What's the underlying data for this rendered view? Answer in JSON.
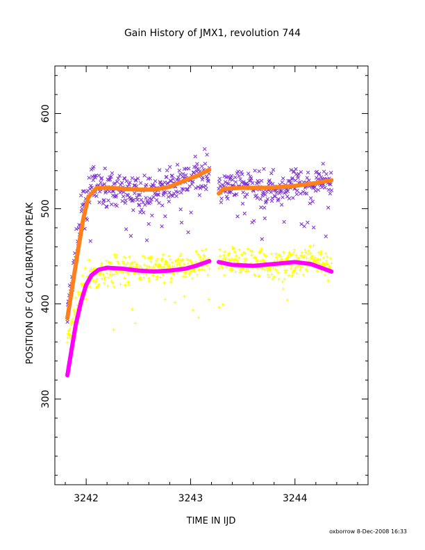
{
  "chart_data": {
    "type": "scatter",
    "title": "Gain History of JMX1, revolution 744",
    "xlabel": "TIME IN IJD",
    "ylabel": "POSITION OF Cd CALIBRATION PEAK",
    "xlim": [
      3241.7,
      3244.7
    ],
    "ylim": [
      210,
      650
    ],
    "x_ticks": [
      3242,
      3243,
      3244
    ],
    "x_tick_labels": [
      "3242",
      "3243",
      "3244"
    ],
    "y_ticks": [
      300,
      400,
      500,
      600
    ],
    "y_tick_labels": [
      "300",
      "400",
      "500",
      "600"
    ],
    "grid": false,
    "legend": "none",
    "segments": [
      [
        3241.82,
        3243.18
      ],
      [
        3243.27,
        3244.35
      ]
    ],
    "series": [
      {
        "marker": "x",
        "color": "#7b2fd0",
        "kind": "scatter",
        "anchors_x": [
          3241.82,
          3241.9,
          3241.97,
          3242.05,
          3242.2,
          3242.4,
          3242.6,
          3242.8,
          3243.0,
          3243.18,
          3243.27,
          3243.5,
          3243.8,
          3244.1,
          3244.35
        ],
        "anchors_y": [
          390,
          450,
          505,
          525,
          520,
          518,
          515,
          525,
          530,
          540,
          520,
          525,
          520,
          525,
          530
        ],
        "noise": 14
      },
      {
        "marker": "line",
        "color": "#ff7f1a",
        "kind": "fit",
        "x": [
          3241.82,
          3241.87,
          3241.92,
          3241.97,
          3242.02,
          3242.1,
          3242.2,
          3242.35,
          3242.5,
          3242.65,
          3242.8,
          3242.95,
          3243.05,
          3243.18,
          3243.27,
          3243.32,
          3243.5,
          3243.75,
          3244.0,
          3244.2,
          3244.35
        ],
        "y": [
          385,
          420,
          455,
          488,
          512,
          522,
          522,
          521,
          520,
          520,
          523,
          530,
          534,
          541,
          516,
          521,
          522,
          522,
          524,
          527,
          530
        ]
      },
      {
        "marker": "+",
        "color": "#ffff00",
        "kind": "scatter",
        "anchors_x": [
          3241.82,
          3241.87,
          3241.92,
          3241.97,
          3242.05,
          3242.2,
          3242.5,
          3242.8,
          3243.0,
          3243.18,
          3243.27,
          3243.5,
          3243.8,
          3244.1,
          3244.35
        ],
        "anchors_y": [
          360,
          385,
          400,
          420,
          430,
          435,
          435,
          440,
          440,
          445,
          445,
          445,
          440,
          445,
          440
        ],
        "noise": 12
      },
      {
        "marker": "line",
        "color": "#ff00ff",
        "kind": "fit",
        "x": [
          3241.82,
          3241.86,
          3241.9,
          3241.95,
          3242.0,
          3242.05,
          3242.12,
          3242.2,
          3242.35,
          3242.5,
          3242.65,
          3242.8,
          3242.95,
          3243.05,
          3243.18,
          3243.27,
          3243.4,
          3243.6,
          3243.8,
          3244.0,
          3244.15,
          3244.35
        ],
        "y": [
          325,
          352,
          378,
          402,
          420,
          430,
          436,
          438,
          437,
          435,
          434,
          435,
          437,
          440,
          445,
          444,
          441,
          440,
          442,
          444,
          442,
          434
        ]
      }
    ]
  },
  "footer": "oxborrow  8-Dec-2008 16:33"
}
